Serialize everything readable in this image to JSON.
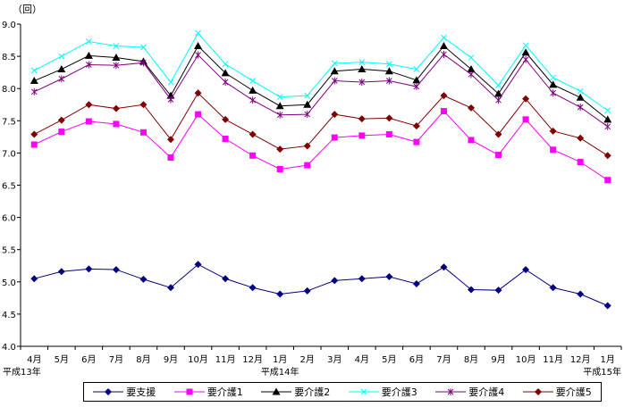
{
  "chart_data": {
    "type": "line",
    "title": "",
    "unit_label": "（回）",
    "xlabel": "",
    "ylabel": "",
    "ylim": [
      4.0,
      9.0
    ],
    "yticks": [
      "4.0",
      "4.5",
      "5.0",
      "5.5",
      "6.0",
      "6.5",
      "7.0",
      "7.5",
      "8.0",
      "8.5",
      "9.0"
    ],
    "categories": [
      "4月",
      "5月",
      "6月",
      "7月",
      "8月",
      "9月",
      "10月",
      "11月",
      "12月",
      "1月",
      "2月",
      "3月",
      "4月",
      "5月",
      "6月",
      "7月",
      "8月",
      "9月",
      "10月",
      "11月",
      "12月",
      "1月"
    ],
    "year_labels": [
      {
        "index": 0,
        "label": "平成13年"
      },
      {
        "index": 9,
        "label": "平成14年"
      },
      {
        "index": 21,
        "label": "平成15年"
      }
    ],
    "legend_position": "bottom",
    "grid": false,
    "series": [
      {
        "name": "要支援",
        "color": "#000080",
        "marker": "diamond",
        "values": [
          5.05,
          5.16,
          5.2,
          5.19,
          5.04,
          4.91,
          5.27,
          5.05,
          4.91,
          4.81,
          4.86,
          5.02,
          5.05,
          5.08,
          4.97,
          5.23,
          4.88,
          4.87,
          5.19,
          4.91,
          4.81,
          4.63
        ]
      },
      {
        "name": "要介護1",
        "color": "#FF00FF",
        "marker": "square",
        "values": [
          7.13,
          7.33,
          7.49,
          7.45,
          7.32,
          6.93,
          7.6,
          7.22,
          6.96,
          6.75,
          6.81,
          7.24,
          7.27,
          7.29,
          7.17,
          7.65,
          7.2,
          6.97,
          7.52,
          7.05,
          6.86,
          6.58
        ]
      },
      {
        "name": "要介護2",
        "color": "#000000",
        "marker": "triangle",
        "values": [
          8.12,
          8.3,
          8.51,
          8.48,
          8.42,
          7.89,
          8.66,
          8.24,
          7.97,
          7.73,
          7.75,
          8.27,
          8.3,
          8.27,
          8.13,
          8.66,
          8.3,
          7.92,
          8.56,
          8.06,
          7.86,
          7.52
        ]
      },
      {
        "name": "要介護3",
        "color": "#00FFFF",
        "marker": "x",
        "values": [
          8.28,
          8.5,
          8.73,
          8.66,
          8.64,
          8.1,
          8.86,
          8.38,
          8.12,
          7.87,
          7.89,
          8.39,
          8.41,
          8.38,
          8.3,
          8.79,
          8.48,
          8.05,
          8.67,
          8.17,
          7.96,
          7.66
        ]
      },
      {
        "name": "要介護4",
        "color": "#800080",
        "marker": "star",
        "values": [
          7.95,
          8.15,
          8.37,
          8.36,
          8.4,
          7.83,
          8.52,
          8.1,
          7.82,
          7.59,
          7.6,
          8.12,
          8.1,
          8.12,
          8.03,
          8.53,
          8.22,
          7.82,
          8.45,
          7.93,
          7.71,
          7.41
        ]
      },
      {
        "name": "要介護5",
        "color": "#800000",
        "marker": "circle-diamond",
        "values": [
          7.29,
          7.51,
          7.75,
          7.69,
          7.75,
          7.21,
          7.93,
          7.52,
          7.29,
          7.06,
          7.11,
          7.6,
          7.53,
          7.54,
          7.42,
          7.89,
          7.7,
          7.29,
          7.84,
          7.34,
          7.23,
          6.96
        ]
      }
    ]
  }
}
